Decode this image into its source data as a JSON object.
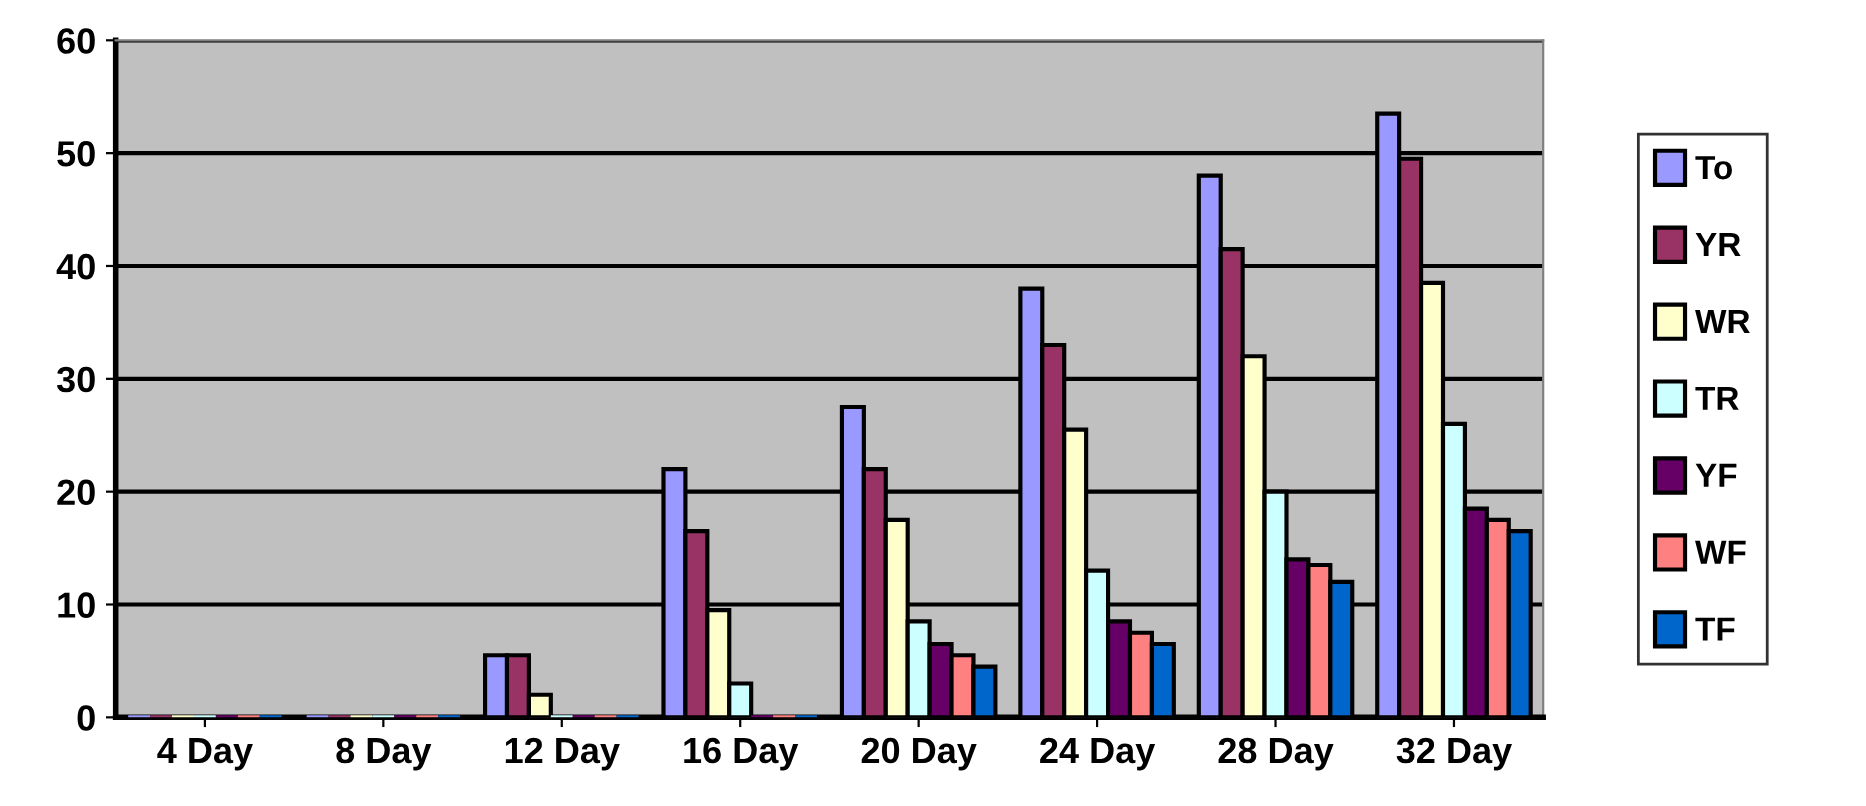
{
  "chart_data": {
    "type": "bar",
    "categories": [
      "4 Day",
      "8 Day",
      "12 Day",
      "16 Day",
      "20 Day",
      "24 Day",
      "28 Day",
      "32 Day"
    ],
    "series": [
      {
        "name": "To",
        "color": "#9999ff",
        "values": [
          0,
          0,
          5.5,
          22,
          27.5,
          38,
          48,
          53.5
        ]
      },
      {
        "name": "YR",
        "color": "#993366",
        "values": [
          0,
          0,
          5.5,
          16.5,
          22,
          33,
          41.5,
          49.5
        ]
      },
      {
        "name": "WR",
        "color": "#ffffcc",
        "values": [
          0,
          0,
          2,
          9.5,
          17.5,
          25.5,
          32,
          38.5
        ]
      },
      {
        "name": "TR",
        "color": "#ccffff",
        "values": [
          0,
          0,
          0,
          3,
          8.5,
          13,
          20,
          26
        ]
      },
      {
        "name": "YF",
        "color": "#660066",
        "values": [
          0,
          0,
          0,
          0,
          6.5,
          8.5,
          14,
          18.5
        ]
      },
      {
        "name": "WF",
        "color": "#ff8080",
        "values": [
          0,
          0,
          0,
          0,
          5.5,
          7.5,
          13.5,
          17.5
        ]
      },
      {
        "name": "TF",
        "color": "#0066cc",
        "values": [
          0,
          0,
          0,
          0,
          4.5,
          6.5,
          12,
          16.5
        ]
      }
    ],
    "ylim": [
      0,
      60
    ],
    "yticks": [
      0,
      10,
      20,
      30,
      40,
      50,
      60
    ],
    "grid": "y",
    "legend": "right"
  }
}
